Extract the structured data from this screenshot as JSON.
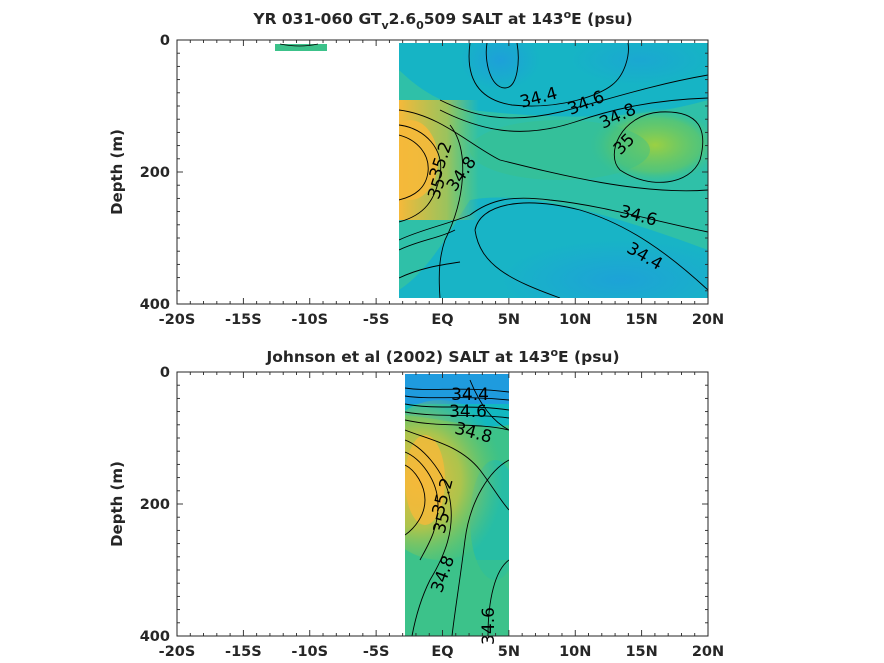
{
  "colors": {
    "fresh": "#1f9bde",
    "mid": "#12b8c0",
    "mid2": "#3cc28a",
    "salty": "#9bd043",
    "salty2": "#f5b93a",
    "contour": "#000000",
    "axis": "#262626"
  },
  "chart_data": [
    {
      "type": "heatmap",
      "title_parts": [
        "YR 031-060 GT",
        "v",
        "2.6",
        "0",
        "509 SALT at 143",
        "o",
        "E (psu)"
      ],
      "ylabel": "Depth (m)",
      "xlabel": "",
      "xticks": [
        "-20S",
        "-15S",
        "-10S",
        "-5S",
        "EQ",
        "5N",
        "10N",
        "15N",
        "20N"
      ],
      "xtick_values": [
        -20,
        -15,
        -10,
        -5,
        0,
        5,
        10,
        15,
        20
      ],
      "yticks": [
        "0",
        "200",
        "400"
      ],
      "ytick_values": [
        0,
        200,
        400
      ],
      "xlim": [
        -20,
        20
      ],
      "ylim": [
        0,
        400
      ],
      "y_reversed": true,
      "data_extent_lat": [
        -3.3,
        20
      ],
      "patch_lat": [
        -12,
        -8
      ],
      "patch_depth": [
        0,
        15
      ],
      "contour_levels": [
        34.4,
        34.6,
        34.8,
        35,
        35.2
      ],
      "contour_labels": [
        "34.4",
        "34.6",
        "34.8",
        "35",
        "35.2",
        "35",
        "34.8",
        "34.6",
        "34.4"
      ]
    },
    {
      "type": "heatmap",
      "title_parts": [
        "Johnson et al (2002) SALT at 143",
        "o",
        "E (psu)"
      ],
      "ylabel": "Depth (m)",
      "xlabel": "",
      "xticks": [
        "-20S",
        "-15S",
        "-10S",
        "-5S",
        "EQ",
        "5N",
        "10N",
        "15N",
        "20N"
      ],
      "xtick_values": [
        -20,
        -15,
        -10,
        -5,
        0,
        5,
        10,
        15,
        20
      ],
      "yticks": [
        "0",
        "200",
        "400"
      ],
      "ytick_values": [
        0,
        200,
        400
      ],
      "xlim": [
        -20,
        20
      ],
      "ylim": [
        0,
        400
      ],
      "y_reversed": true,
      "data_extent_lat": [
        -2.8,
        5
      ],
      "contour_levels": [
        34.4,
        34.6,
        34.8,
        35,
        35.2
      ],
      "contour_labels": [
        "34.4",
        "34.6",
        "34.8",
        "35.2",
        "35",
        "34.8",
        "34.6"
      ]
    }
  ]
}
